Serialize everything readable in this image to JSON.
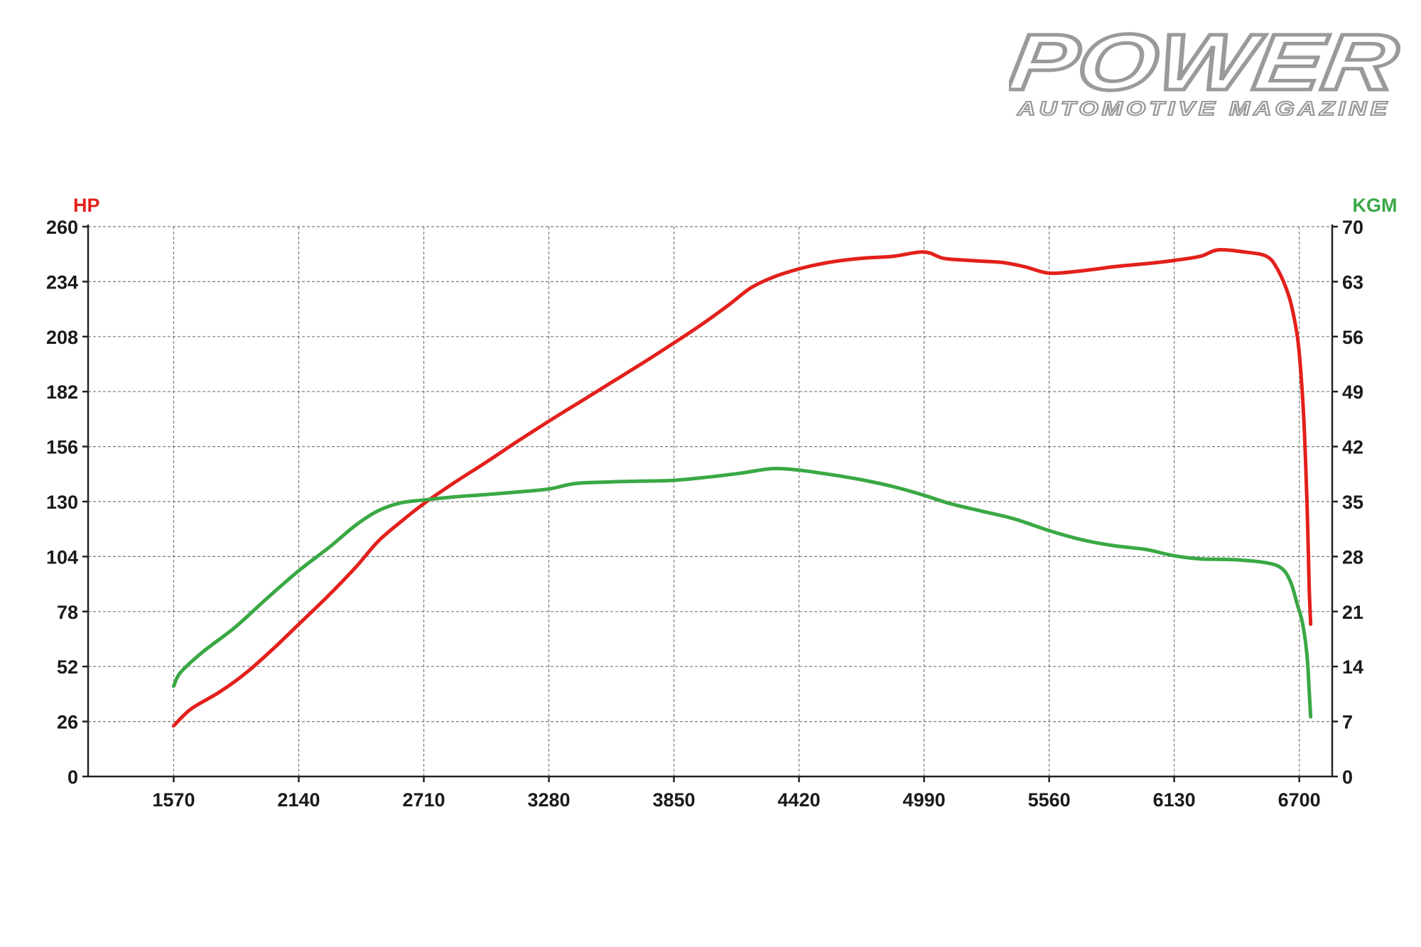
{
  "logo": {
    "brand": "POWER",
    "tagline": "AUTOMOTIVE MAGAZINE"
  },
  "colors": {
    "hp": "#e3201b",
    "torque": "#3aa845",
    "grid": "#7a7a7a",
    "text": "#1a1a1a"
  },
  "chart_data": {
    "type": "line",
    "xlabel": "",
    "x_ticks": [
      1570,
      2140,
      2710,
      3280,
      3850,
      4420,
      4990,
      5560,
      6130,
      6700
    ],
    "xlim": [
      1180,
      6850
    ],
    "y_left": {
      "label": "HP",
      "ticks": [
        0,
        26,
        52,
        78,
        104,
        130,
        156,
        182,
        208,
        234,
        260
      ],
      "ylim": [
        0,
        260
      ]
    },
    "y_right": {
      "label": "KGM",
      "ticks": [
        0,
        7,
        14,
        21,
        28,
        35,
        42,
        49,
        56,
        63,
        70
      ],
      "ylim": [
        0,
        70
      ]
    },
    "grid": true,
    "series": [
      {
        "name": "HP",
        "axis": "left",
        "color": "#e3201b",
        "points": [
          [
            1570,
            24
          ],
          [
            1650,
            32
          ],
          [
            1780,
            40
          ],
          [
            1900,
            49
          ],
          [
            2030,
            61
          ],
          [
            2140,
            72
          ],
          [
            2270,
            85
          ],
          [
            2400,
            99
          ],
          [
            2500,
            111
          ],
          [
            2600,
            120
          ],
          [
            2710,
            129
          ],
          [
            2850,
            139
          ],
          [
            3000,
            149
          ],
          [
            3130,
            158
          ],
          [
            3280,
            168
          ],
          [
            3420,
            177
          ],
          [
            3560,
            186
          ],
          [
            3700,
            195
          ],
          [
            3850,
            205
          ],
          [
            3980,
            214
          ],
          [
            4100,
            223
          ],
          [
            4200,
            231
          ],
          [
            4300,
            236
          ],
          [
            4420,
            240
          ],
          [
            4550,
            243
          ],
          [
            4700,
            245
          ],
          [
            4850,
            246
          ],
          [
            4990,
            248
          ],
          [
            5080,
            245
          ],
          [
            5200,
            244
          ],
          [
            5350,
            243
          ],
          [
            5450,
            241
          ],
          [
            5560,
            238
          ],
          [
            5700,
            239
          ],
          [
            5850,
            241
          ],
          [
            5950,
            242
          ],
          [
            6050,
            243
          ],
          [
            6130,
            244
          ],
          [
            6250,
            246
          ],
          [
            6330,
            249
          ],
          [
            6450,
            248
          ],
          [
            6550,
            246
          ],
          [
            6600,
            240
          ],
          [
            6650,
            228
          ],
          [
            6680,
            215
          ],
          [
            6700,
            200
          ],
          [
            6720,
            170
          ],
          [
            6735,
            130
          ],
          [
            6745,
            90
          ],
          [
            6752,
            72
          ]
        ]
      },
      {
        "name": "KGM",
        "axis": "right",
        "color": "#3aa845",
        "points": [
          [
            1570,
            11.5
          ],
          [
            1600,
            13.2
          ],
          [
            1700,
            15.8
          ],
          [
            1850,
            19.0
          ],
          [
            2000,
            22.8
          ],
          [
            2140,
            26.2
          ],
          [
            2280,
            29.2
          ],
          [
            2400,
            32.0
          ],
          [
            2500,
            33.8
          ],
          [
            2600,
            34.8
          ],
          [
            2710,
            35.2
          ],
          [
            2850,
            35.6
          ],
          [
            3000,
            35.9
          ],
          [
            3130,
            36.2
          ],
          [
            3280,
            36.6
          ],
          [
            3400,
            37.3
          ],
          [
            3560,
            37.5
          ],
          [
            3700,
            37.6
          ],
          [
            3850,
            37.7
          ],
          [
            4000,
            38.1
          ],
          [
            4150,
            38.6
          ],
          [
            4300,
            39.2
          ],
          [
            4420,
            39.0
          ],
          [
            4550,
            38.5
          ],
          [
            4700,
            37.8
          ],
          [
            4850,
            36.9
          ],
          [
            4990,
            35.8
          ],
          [
            5100,
            34.8
          ],
          [
            5250,
            33.8
          ],
          [
            5400,
            32.8
          ],
          [
            5560,
            31.3
          ],
          [
            5700,
            30.2
          ],
          [
            5850,
            29.4
          ],
          [
            6000,
            28.9
          ],
          [
            6130,
            28.1
          ],
          [
            6250,
            27.7
          ],
          [
            6400,
            27.6
          ],
          [
            6550,
            27.2
          ],
          [
            6620,
            26.5
          ],
          [
            6660,
            24.8
          ],
          [
            6690,
            22.0
          ],
          [
            6715,
            19.5
          ],
          [
            6735,
            15.5
          ],
          [
            6745,
            11.0
          ],
          [
            6752,
            7.6
          ]
        ]
      }
    ]
  }
}
